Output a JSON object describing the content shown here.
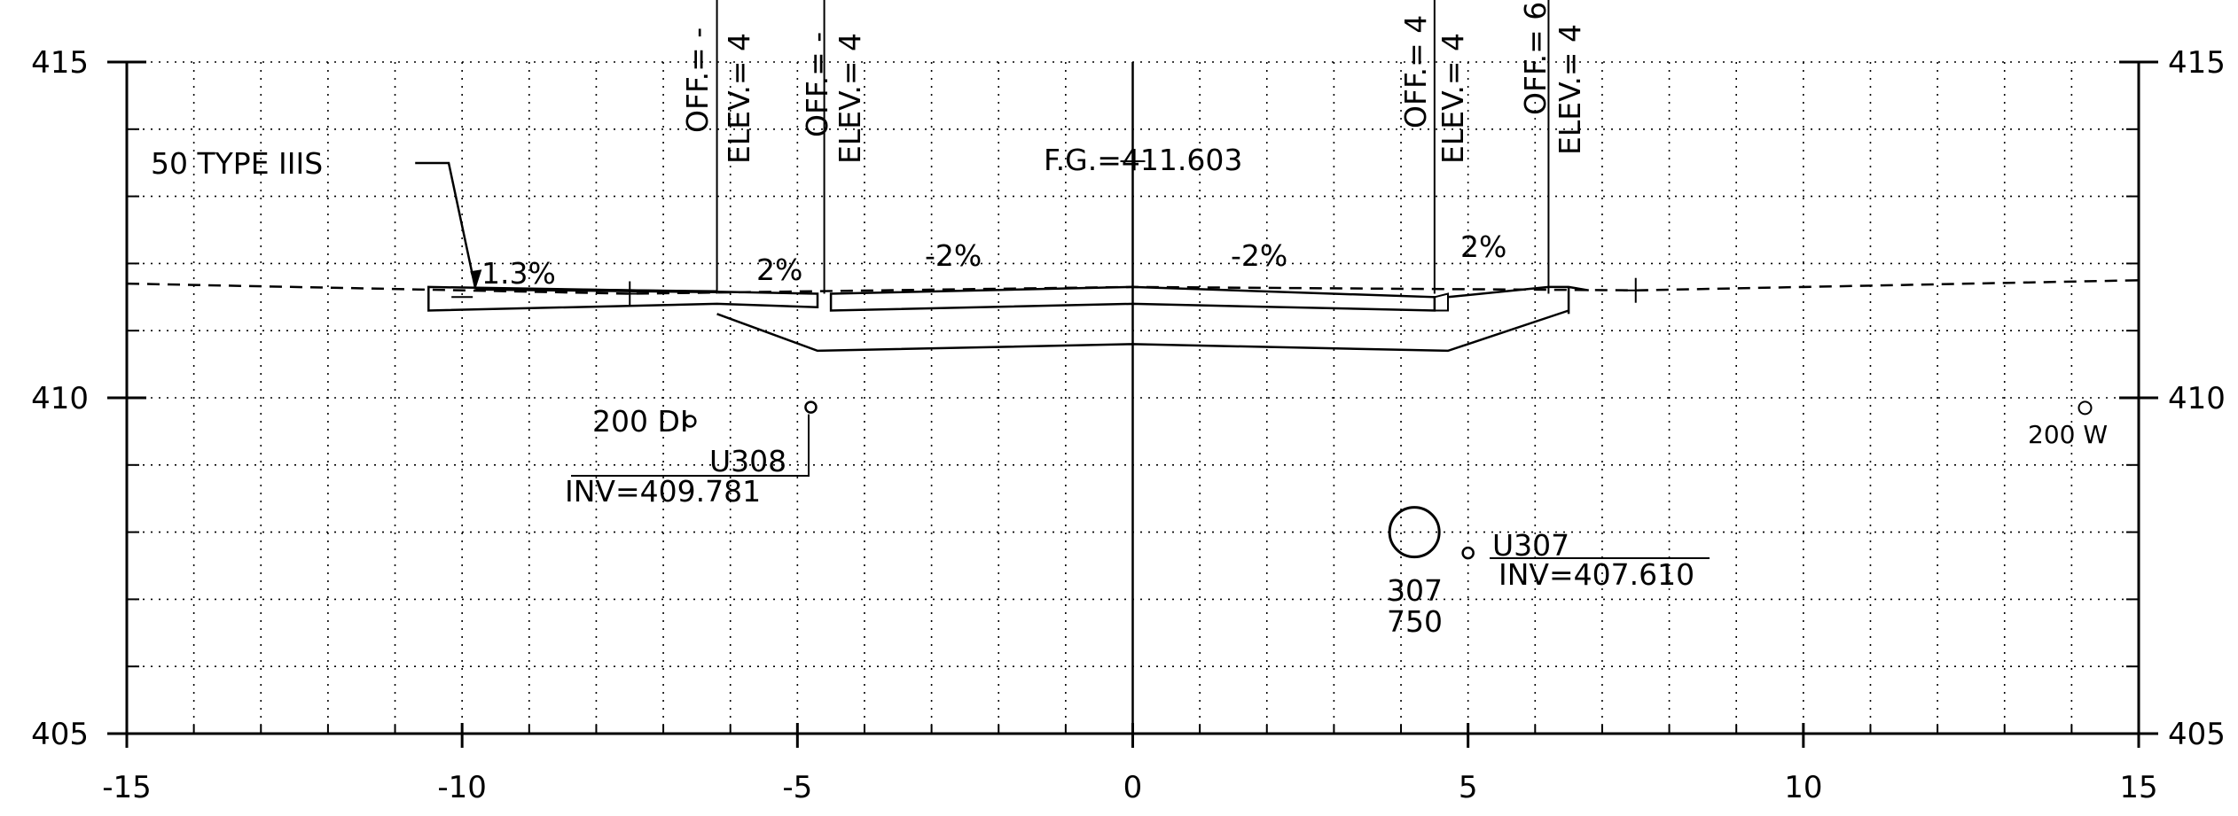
{
  "axes": {
    "x_ticks": [
      "-15",
      "-10",
      "-5",
      "0",
      "5",
      "10",
      "15"
    ],
    "y_ticks_left": [
      "415",
      "410",
      "405"
    ],
    "y_ticks_right": [
      "415",
      "410",
      "405"
    ]
  },
  "labels": {
    "fg": "F.G.=411.603",
    "pavement_type": "50 TYPE IIIS",
    "slopes": [
      "1.3%",
      "2%",
      "-2%",
      "-2%",
      "2%"
    ],
    "pipe_left_size": "200 DI",
    "pipe_left_id": "U308",
    "pipe_left_inv": "INV=409.781",
    "pipe_right_id": "U307",
    "pipe_right_inv": "INV=407.610",
    "manhole_num": "307",
    "manhole_size": "750",
    "water_label": "200 W"
  },
  "offset_labels": [
    {
      "off": "OFF.= -",
      "elev": "ELEV.= 4"
    },
    {
      "off": "OFF.= -",
      "elev": "ELEV.= 4"
    },
    {
      "off": "OFF.= 4",
      "elev": "ELEV.= 4"
    },
    {
      "off": "OFF.= 6",
      "elev": "ELEV.= 4"
    }
  ],
  "chart_data": {
    "type": "cross-section",
    "xlim": [
      -15,
      15
    ],
    "ylim": [
      405,
      415
    ],
    "grid": true,
    "existing_ground": [
      [
        -15,
        411.7
      ],
      [
        -7.5,
        411.55
      ],
      [
        0,
        411.65
      ],
      [
        7.5,
        411.6
      ],
      [
        15,
        411.75
      ]
    ],
    "finished_grade": [
      [
        -9.8,
        411.6
      ],
      [
        -6.2,
        411.55
      ],
      [
        -4.7,
        411.5
      ],
      [
        0,
        411.6
      ],
      [
        4.5,
        411.5
      ],
      [
        6.2,
        411.65
      ],
      [
        6.8,
        411.65
      ]
    ],
    "offsets": [
      -6.2,
      -4.6,
      4.5,
      6.2
    ],
    "pipes": [
      {
        "id": "U308",
        "x": -4.8,
        "inv": 409.781
      },
      {
        "id": "U307",
        "x": 5.0,
        "inv": 407.61
      }
    ],
    "manhole": {
      "id": "307",
      "x": 4.2,
      "y": 408.0,
      "size": 750
    },
    "water_main": {
      "size": 200,
      "x": 14.2,
      "y": 409.85
    }
  }
}
